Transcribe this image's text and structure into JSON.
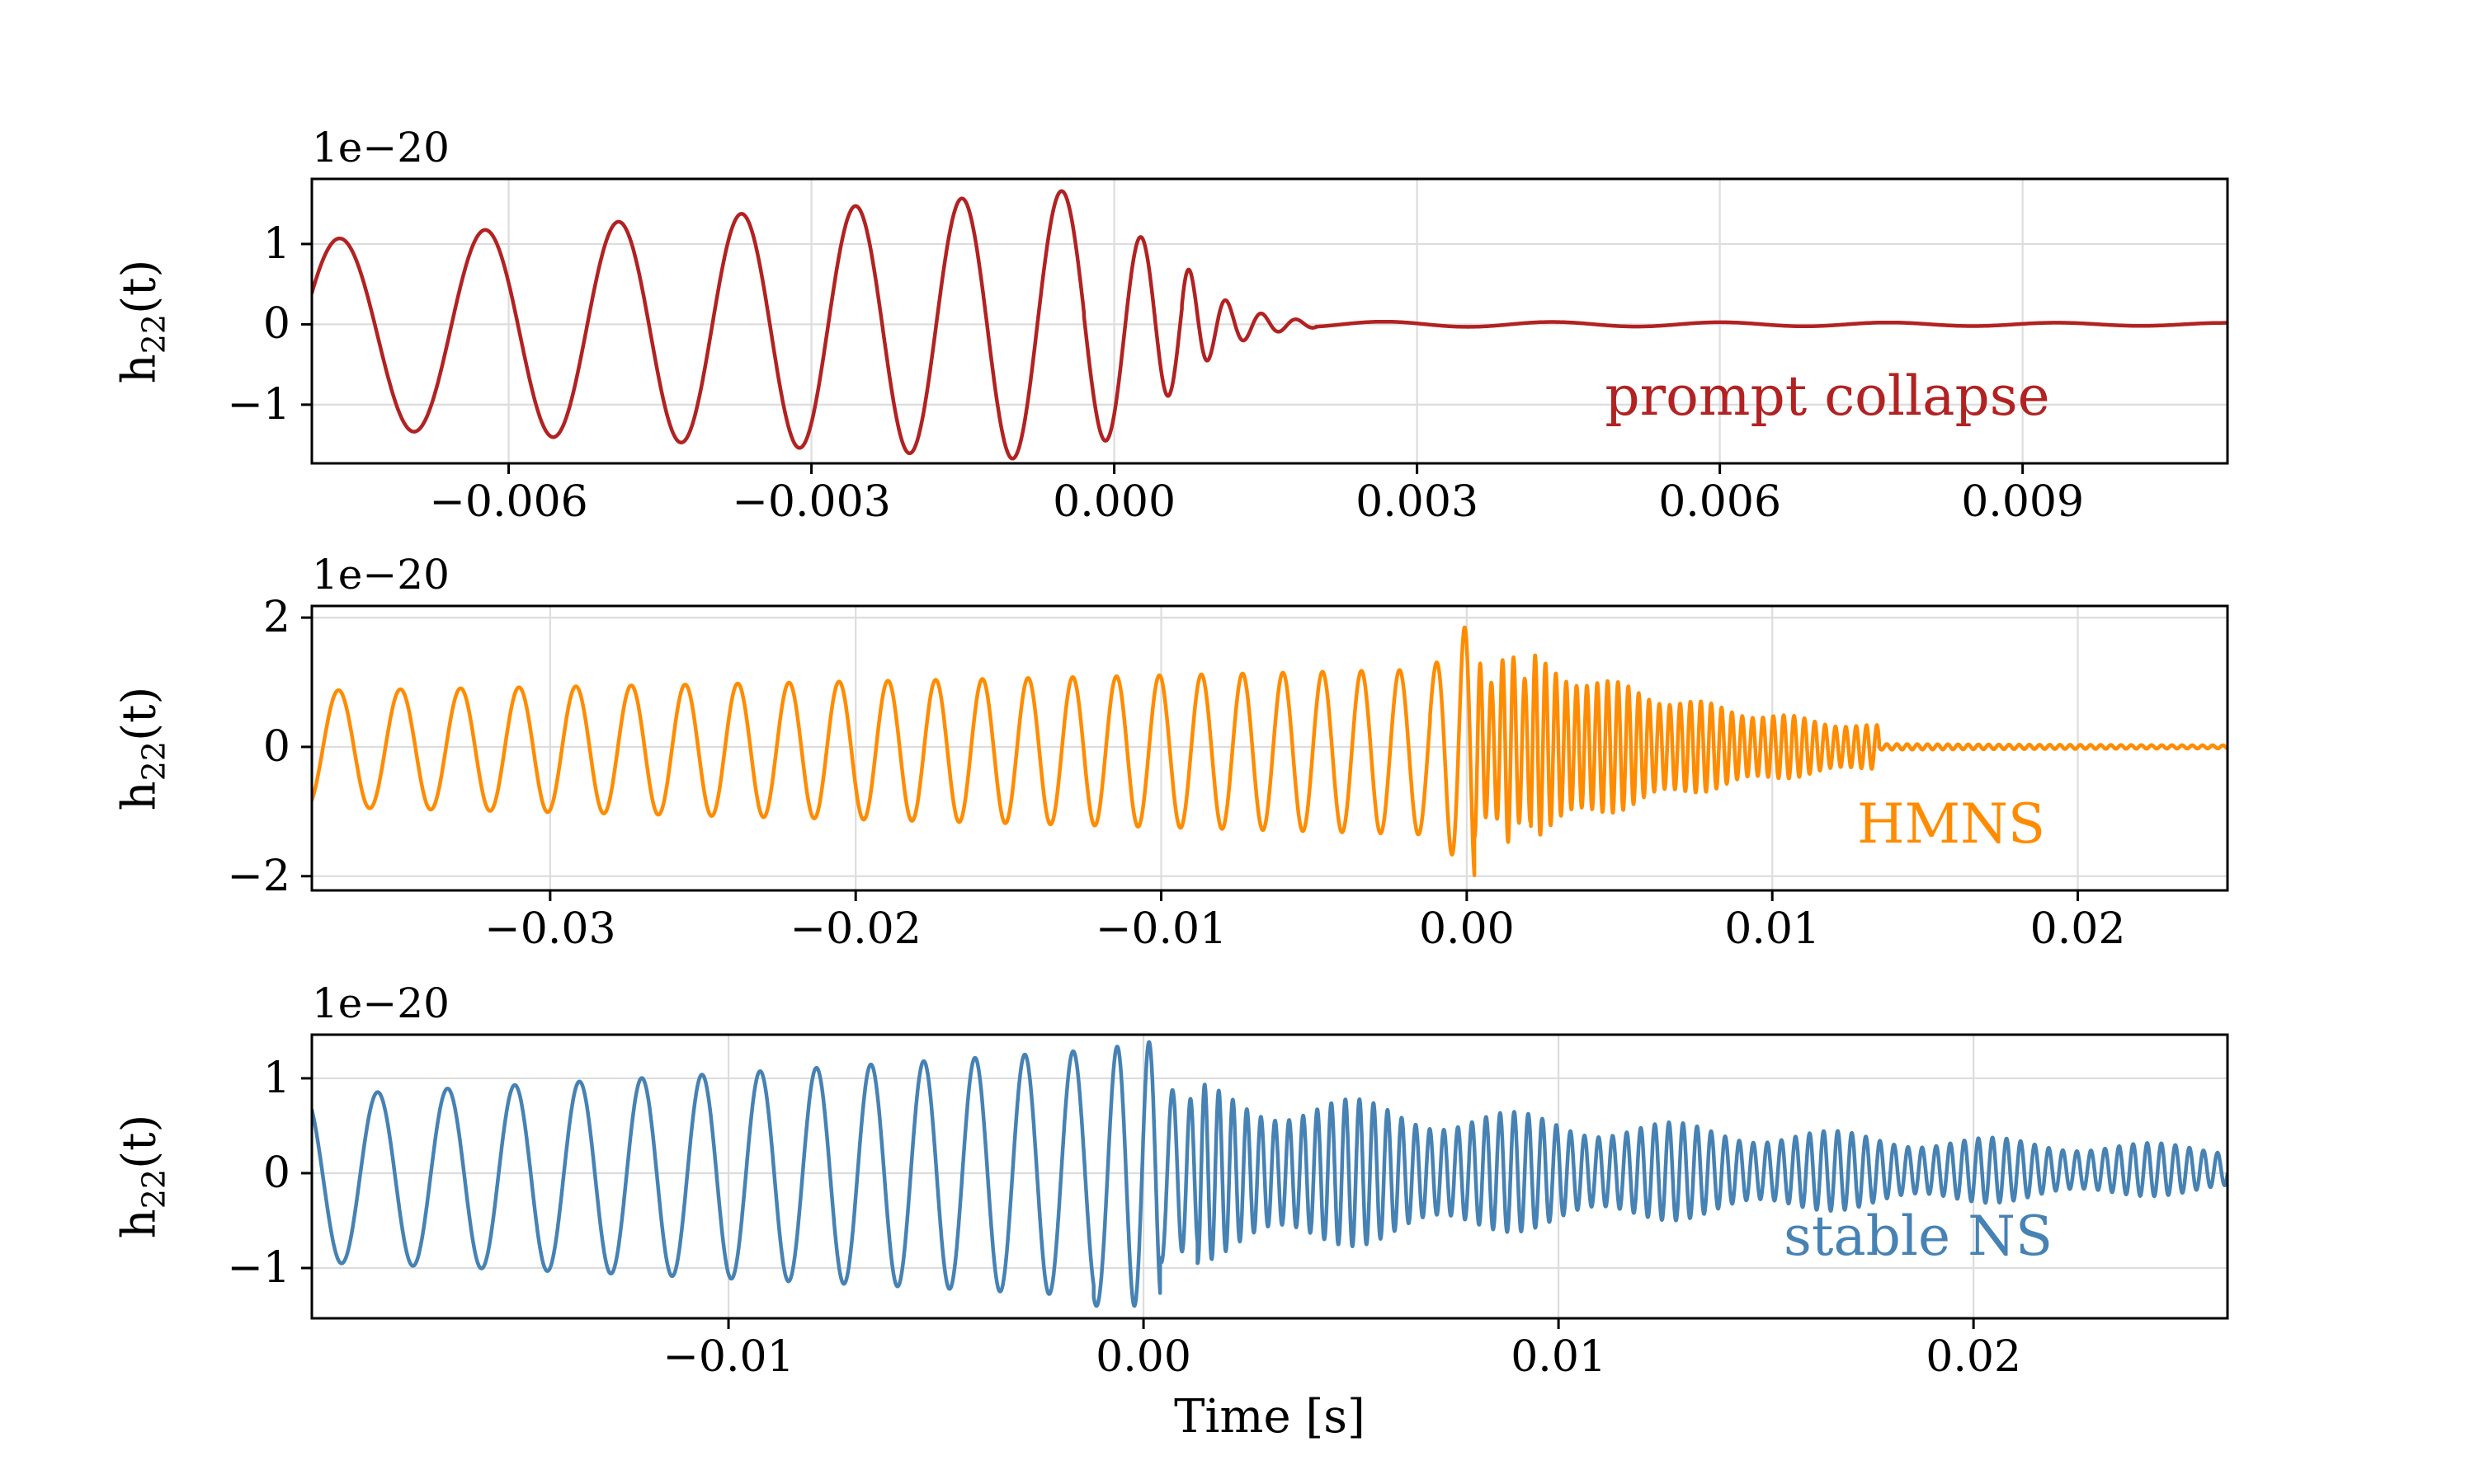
{
  "figure": {
    "background": "#ffffff"
  },
  "chart_data": {
    "type": "line",
    "title": "",
    "xlabel": "Time [s]",
    "ylabel_parts": {
      "base": "h",
      "sub": "22",
      "suffix": "(t)"
    },
    "offset_label": "1e−20",
    "grid": true,
    "grid_color": "#dddddd",
    "spine_color": "#000000",
    "subplots": [
      {
        "id": "prompt-collapse",
        "annotation": "prompt collapse",
        "color": "#b22222",
        "xlim": [
          -0.00795,
          0.01103
        ],
        "ylim": [
          -1.73,
          1.81
        ],
        "xticks": [
          {
            "v": -0.006,
            "label": "−0.006"
          },
          {
            "v": -0.003,
            "label": "−0.003"
          },
          {
            "v": 0.0,
            "label": "0.000"
          },
          {
            "v": 0.003,
            "label": "0.003"
          },
          {
            "v": 0.006,
            "label": "0.006"
          },
          {
            "v": 0.009,
            "label": "0.009"
          }
        ],
        "yticks": [
          {
            "v": -1,
            "label": "−1"
          },
          {
            "v": 0,
            "label": "0"
          },
          {
            "v": 1,
            "label": "1"
          }
        ],
        "unit_scale": "1e-20",
        "description": "Binary neutron star merger waveform with prompt black-hole collapse: ~6.5-cycle inspiral chirp rising from amplitude 1.05 to peak 1.7 at t=0, fast ringdown, then flat near-zero signal.",
        "waveform": {
          "phi0": -1.12,
          "segments": [
            {
              "t0": -0.00795,
              "t1": -0.0003,
              "f0": 650,
              "f1": 1060,
              "a0": 1.17,
              "a1": 1.7,
              "off0": -0.12,
              "off1": -0.02
            },
            {
              "t0": -0.0003,
              "t1": 0.00067,
              "f0": 1060,
              "f1": 2300,
              "a0": 1.7,
              "a1": 0.8,
              "off0": -0.02,
              "off1": 0
            },
            {
              "t0": 0.00067,
              "t1": 0.002,
              "f0": 2700,
              "f1": 3000,
              "a0": 0.8,
              "a1": 0.04,
              "off0": 0,
              "off1": 0
            },
            {
              "t0": 0.002,
              "t1": 0.01103,
              "f0": 600,
              "f1": 600,
              "a0": 0.035,
              "a1": 0.018,
              "off0": 0,
              "off1": 0
            }
          ]
        }
      },
      {
        "id": "hmns",
        "annotation": "HMNS",
        "color": "#ff8c00",
        "xlim": [
          -0.0378,
          0.0249
        ],
        "ylim": [
          -2.22,
          2.18
        ],
        "xticks": [
          {
            "v": -0.03,
            "label": "−0.03"
          },
          {
            "v": -0.02,
            "label": "−0.02"
          },
          {
            "v": -0.01,
            "label": "−0.01"
          },
          {
            "v": 0.0,
            "label": "0.00"
          },
          {
            "v": 0.01,
            "label": "0.01"
          },
          {
            "v": 0.02,
            "label": "0.02"
          }
        ],
        "yticks": [
          {
            "v": -2,
            "label": "−2"
          },
          {
            "v": 0,
            "label": "0"
          },
          {
            "v": 2,
            "label": "2"
          }
        ],
        "unit_scale": "1e-20",
        "description": "Hypermassive neutron star remnant: ~22-cycle inspiral rising from amplitude 0.9 to 2.05 at merger (t=0), long high-frequency (~3 kHz) post-merger oscillation decaying until t≈0.0135 s, then flat.",
        "waveform": {
          "phi0": -2.65,
          "segments": [
            {
              "t0": -0.0378,
              "t1": -0.0012,
              "f0": 480,
              "f1": 820,
              "a0": 0.9,
              "a1": 1.28,
              "off0": -0.03,
              "off1": -0.08
            },
            {
              "t0": -0.0012,
              "t1": 0.00025,
              "f0": 820,
              "f1": 1500,
              "a0": 1.28,
              "a1": 2.08,
              "off0": -0.08,
              "off1": 0
            },
            {
              "t0": 0.00025,
              "t1": 0.0021,
              "f0": 2750,
              "f1": 2750,
              "a0": 1.18,
              "a1": 1.3,
              "off0": 0,
              "off1": 0,
              "beat_m": 0.18,
              "beat_f": 900
            },
            {
              "t0": 0.0021,
              "t1": 0.0135,
              "f0": 2950,
              "f1": 2950,
              "a0": 1.3,
              "a1": 0.3,
              "off0": 0,
              "off1": 0,
              "beat_m": 0.12,
              "beat_f": 350
            },
            {
              "t0": 0.0135,
              "t1": 0.0249,
              "f0": 3000,
              "f1": 3000,
              "a0": 0.045,
              "a1": 0.025,
              "off0": 0,
              "off1": 0
            }
          ]
        }
      },
      {
        "id": "stable-ns",
        "annotation": "stable NS",
        "color": "#4682b4",
        "xlim": [
          -0.02004,
          0.02612
        ],
        "ylim": [
          -1.53,
          1.46
        ],
        "xticks": [
          {
            "v": -0.01,
            "label": "−0.01"
          },
          {
            "v": 0.0,
            "label": "0.00"
          },
          {
            "v": 0.01,
            "label": "0.01"
          },
          {
            "v": 0.02,
            "label": "0.02"
          }
        ],
        "yticks": [
          {
            "v": -1,
            "label": "−1"
          },
          {
            "v": 0,
            "label": "0"
          },
          {
            "v": 1,
            "label": "1"
          }
        ],
        "unit_scale": "1e-20",
        "description": "Stable neutron star remnant: ~13-cycle inspiral rising from amplitude 0.85 to 1.35 at merger (t=0), persistent high-frequency (~3 kHz) post-merger oscillation slowly decaying to ~0.2 at the right edge.",
        "waveform": {
          "phi0": 0.6,
          "segments": [
            {
              "t0": -0.02004,
              "t1": -0.0012,
              "f0": 560,
              "f1": 880,
              "a0": 0.88,
              "a1": 1.3,
              "off0": -0.06,
              "off1": 0
            },
            {
              "t0": -0.0012,
              "t1": 0.0004,
              "f0": 880,
              "f1": 1700,
              "a0": 1.35,
              "a1": 1.4,
              "off0": -0.05,
              "off1": 0
            },
            {
              "t0": 0.0004,
              "t1": 0.0013,
              "f0": 1700,
              "f1": 2900,
              "a0": 0.95,
              "a1": 0.75,
              "off0": 0,
              "off1": 0
            },
            {
              "t0": 0.0013,
              "t1": 0.02612,
              "f0": 2950,
              "f1": 2950,
              "a0": 0.78,
              "a1": 0.21,
              "off0": 0,
              "off1": 0.04,
              "beat_m": 0.22,
              "beat_f": 260
            }
          ]
        }
      }
    ]
  }
}
